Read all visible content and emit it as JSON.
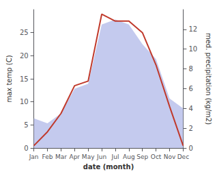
{
  "chart_data": {
    "type": "line",
    "categories": [
      "Jan",
      "Feb",
      "Mar",
      "Apr",
      "May",
      "Jun",
      "Jul",
      "Aug",
      "Sep",
      "Oct",
      "Nov",
      "Dec"
    ],
    "xlabel": "date (month)",
    "ylabel": "max temp (C)",
    "y2label": "med. precipitation (kg/m2)",
    "series": [
      {
        "type": "area",
        "axis": "y2",
        "color": "#b0b8e8",
        "values": [
          3.0,
          2.5,
          3.5,
          6.0,
          6.5,
          12.5,
          13.0,
          12.5,
          10.5,
          9.0,
          5.0,
          4.0
        ]
      },
      {
        "type": "line",
        "color": "#c0392b",
        "values": [
          0.5,
          3.5,
          7.5,
          13.5,
          14.5,
          29.0,
          27.5,
          27.5,
          25.0,
          18.0,
          9.0,
          0.5
        ]
      }
    ],
    "ylim": [
      0,
      30
    ],
    "yticks": [
      0,
      5,
      10,
      15,
      20,
      25
    ],
    "y2lim": [
      0,
      14
    ],
    "y2ticks": [
      0,
      2,
      4,
      6,
      8,
      10,
      12
    ],
    "grid": false
  }
}
